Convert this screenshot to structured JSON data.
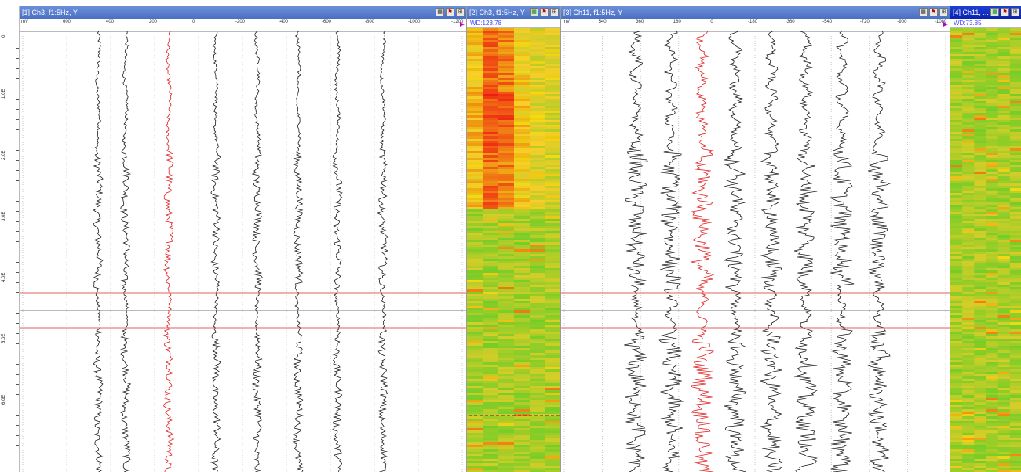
{
  "panels": [
    {
      "title": "[1] Ch3, f1:5Hz, Y",
      "scale": [
        "mV",
        "600",
        "400",
        "200",
        "0",
        "-200",
        "-400",
        "-600",
        "-800",
        "-1000",
        "-1200"
      ]
    },
    {
      "title": "[2] Ch3, f1:5Hz, Y",
      "wd_label": "WD:128.78"
    },
    {
      "title": "[3] Ch11, f1:5Hz, Y",
      "scale": [
        "mV",
        "540",
        "360",
        "180",
        "0",
        "-180",
        "-360",
        "-540",
        "-720",
        "-900",
        "-1080"
      ]
    },
    {
      "title": "[4] Ch11, ...",
      "wd_label": "WD:73.85"
    }
  ],
  "depth_labels": [
    "0",
    "1.0E",
    "2.0E",
    "3.0E",
    "4.0E",
    "5.0E",
    "6.0E"
  ],
  "colors": {
    "trace": "#1a1a1a",
    "highlight_trace": "#e02020",
    "pick_line_red": "#e06060",
    "pick_line_gray": "#777777",
    "title_active": "#0a22b0"
  },
  "icons": [
    "grid-icon",
    "flag-icon",
    "zoom-icon"
  ]
}
